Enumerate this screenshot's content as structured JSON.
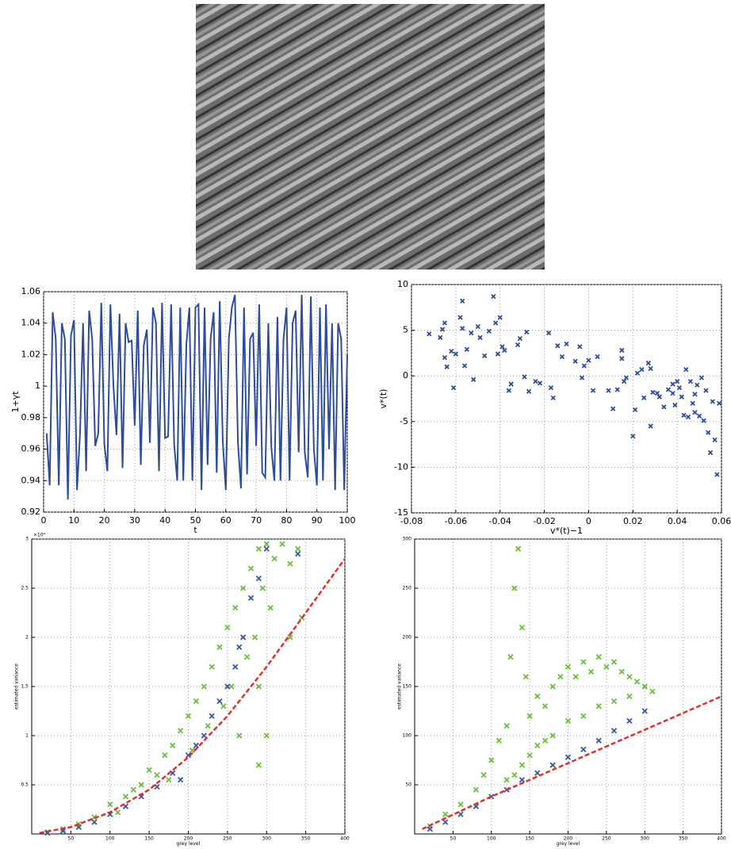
{
  "chart_data": [
    {
      "type": "line",
      "xlabel": "t",
      "ylabel": "1+γt",
      "xlim": [
        0,
        100
      ],
      "xticks": [
        0,
        10,
        20,
        30,
        40,
        50,
        60,
        70,
        80,
        90,
        100
      ],
      "ylim": [
        0.92,
        1.06
      ],
      "yticks": [
        0.92,
        0.94,
        0.96,
        0.98,
        1,
        1.02,
        1.04,
        1.06
      ],
      "grid": true,
      "font_size": 11,
      "series": [
        {
          "color": "#2e4c9c",
          "marker": "line",
          "x": [
            1,
            2,
            3,
            4,
            5,
            6,
            7,
            8,
            9,
            10,
            11,
            12,
            13,
            14,
            15,
            16,
            17,
            18,
            19,
            20,
            21,
            22,
            23,
            24,
            25,
            26,
            27,
            28,
            29,
            30,
            31,
            32,
            33,
            34,
            35,
            36,
            37,
            38,
            39,
            40,
            41,
            42,
            43,
            44,
            45,
            46,
            47,
            48,
            49,
            50,
            51,
            52,
            53,
            54,
            55,
            56,
            57,
            58,
            59,
            60,
            61,
            62,
            63,
            64,
            65,
            66,
            67,
            68,
            69,
            70,
            71,
            72,
            73,
            74,
            75,
            76,
            77,
            78,
            79,
            80,
            81,
            82,
            83,
            84,
            85,
            86,
            87,
            88,
            89,
            90,
            91,
            92,
            93,
            94,
            95,
            96,
            97,
            98,
            99,
            100
          ],
          "values": [
            0.97,
            0.937,
            1.047,
            1.03,
            0.937,
            1.04,
            1.03,
            0.928,
            1.032,
            1.042,
            0.934,
            0.97,
            1.04,
            0.946,
            1.048,
            1.03,
            0.962,
            0.97,
            1.053,
            0.963,
            0.946,
            1.052,
            1.0,
            0.969,
            1.046,
            0.948,
            1.04,
            1.028,
            1.029,
            0.975,
            1.048,
            0.95,
            1.026,
            1.036,
            0.964,
            1.05,
            1.04,
            0.946,
            1.053,
            0.967,
            0.968,
            1.052,
            0.963,
            0.94,
            1.05,
            0.94,
            1.026,
            1.05,
            0.94,
            1.05,
            1.052,
            0.934,
            1.05,
            0.95,
            1.03,
            1.047,
            0.945,
            1.054,
            0.965,
            0.934,
            1.03,
            1.05,
            1.058,
            0.964,
            0.935,
            1.05,
            0.944,
            1.03,
            1.034,
            0.962,
            1.052,
            0.945,
            0.942,
            1.04,
            0.961,
            0.94,
            1.044,
            0.94,
            1.03,
            1.05,
            0.94,
            1.04,
            1.048,
            0.958,
            1.058,
            0.958,
            0.942,
            1.057,
            0.96,
            0.937,
            1.05,
            0.94,
            1.052,
            0.96,
            1.04,
            0.934,
            1.04,
            1.03,
            0.934,
            1.02
          ]
        }
      ]
    },
    {
      "type": "scatter",
      "xlabel": "v*(t)−1",
      "ylabel": "v*(t)",
      "xlim": [
        -0.08,
        0.06
      ],
      "xticks": [
        -0.08,
        -0.06,
        -0.04,
        -0.02,
        0,
        0.02,
        0.04,
        0.06
      ],
      "ylim": [
        -15,
        10
      ],
      "yticks": [
        -15,
        -10,
        -5,
        0,
        5,
        10
      ],
      "grid": true,
      "font_size": 11,
      "series": [
        {
          "color": "#2e4c9c",
          "marker": "x",
          "x": [
            -0.072,
            -0.067,
            -0.066,
            -0.065,
            -0.065,
            -0.064,
            -0.062,
            -0.061,
            -0.06,
            -0.058,
            -0.057,
            -0.057,
            -0.056,
            -0.055,
            -0.053,
            -0.052,
            -0.05,
            -0.049,
            -0.047,
            -0.045,
            -0.043,
            -0.042,
            -0.041,
            -0.04,
            -0.039,
            -0.038,
            -0.036,
            -0.035,
            -0.032,
            -0.031,
            -0.029,
            -0.028,
            -0.027,
            -0.024,
            -0.022,
            -0.018,
            -0.017,
            -0.016,
            -0.014,
            -0.012,
            -0.01,
            -0.006,
            -0.004,
            -0.003,
            -0.002,
            0,
            0.002,
            0.004,
            0.009,
            0.011,
            0.013,
            0.015,
            0.015,
            0.016,
            0.017,
            0.02,
            0.021,
            0.022,
            0.024,
            0.025,
            0.027,
            0.028,
            0.028,
            0.029,
            0.031,
            0.032,
            0.034,
            0.036,
            0.038,
            0.038,
            0.039,
            0.04,
            0.041,
            0.042,
            0.043,
            0.044,
            0.045,
            0.046,
            0.047,
            0.048,
            0.048,
            0.049,
            0.05,
            0.051,
            0.052,
            0.053,
            0.054,
            0.055,
            0.056,
            0.057,
            0.058,
            0.059
          ],
          "values": [
            4.6,
            4.2,
            5.1,
            5.8,
            2.0,
            1.0,
            2.7,
            -1.3,
            2.4,
            6.4,
            8.2,
            5.2,
            1.1,
            2.9,
            4.7,
            -0.4,
            5.4,
            4.2,
            2.2,
            4.9,
            8.7,
            5.8,
            2.4,
            6.4,
            3.2,
            2.8,
            -1.6,
            -0.9,
            3.4,
            4.1,
            -0.1,
            4.8,
            -1.7,
            -0.6,
            -0.8,
            4.7,
            -1.3,
            -2.4,
            3.3,
            2.1,
            3.5,
            1.6,
            3.2,
            -0.2,
            1.1,
            1.7,
            -1.6,
            2.1,
            -1.6,
            -3.6,
            -1.5,
            2.8,
            1.9,
            -0.6,
            -0.2,
            -6.6,
            -3.7,
            0.3,
            0.7,
            -2.4,
            1.4,
            -5.5,
            0.8,
            -1.8,
            -1.9,
            -2.3,
            -3.4,
            -1.5,
            -0.9,
            -1.9,
            -3.2,
            -0.6,
            -1.3,
            -2.3,
            -4.3,
            0.7,
            -4.5,
            -0.6,
            -3.0,
            -2.0,
            -4.0,
            -1.0,
            -4.4,
            -0.2,
            -4.9,
            -1.6,
            -6.2,
            -8.4,
            -2.8,
            -7.0,
            -10.8,
            -3.0
          ]
        }
      ]
    },
    {
      "type": "scatter",
      "xlabel": "grey level",
      "ylabel": "estimated variance",
      "y_multiplier": "×10⁴",
      "xlim": [
        0,
        400
      ],
      "xticks": [
        50,
        100,
        150,
        200,
        250,
        300,
        350,
        400
      ],
      "ylim": [
        0,
        3
      ],
      "yticks": [
        0.5,
        1,
        1.5,
        2,
        2.5,
        3
      ],
      "grid": true,
      "font_size": 6,
      "series": [
        {
          "color": "#6abf3b",
          "marker": "x",
          "x": [
            20,
            40,
            60,
            80,
            100,
            110,
            120,
            130,
            140,
            150,
            160,
            170,
            175,
            180,
            190,
            200,
            205,
            210,
            220,
            225,
            230,
            240,
            245,
            250,
            255,
            260,
            265,
            270,
            275,
            280,
            285,
            290,
            295,
            300,
            305,
            310,
            320,
            330,
            340,
            345,
            290,
            290,
            300,
            330
          ],
          "values": [
            0.02,
            0.05,
            0.1,
            0.17,
            0.3,
            0.22,
            0.38,
            0.45,
            0.5,
            0.65,
            0.6,
            0.8,
            0.55,
            0.9,
            1.05,
            1.2,
            0.85,
            1.35,
            1.5,
            1.1,
            1.7,
            1.9,
            1.3,
            2.1,
            1.5,
            2.3,
            1.0,
            2.5,
            1.8,
            2.7,
            2.0,
            2.9,
            2.5,
            2.95,
            2.3,
            2.8,
            2.95,
            2.75,
            2.9,
            2.2,
            1.5,
            0.7,
            1.0,
            2.0
          ]
        },
        {
          "color": "#3a55a4",
          "marker": "x",
          "x": [
            20,
            40,
            60,
            80,
            100,
            120,
            140,
            160,
            180,
            190,
            200,
            210,
            220,
            230,
            240,
            250,
            260,
            265,
            270,
            280,
            290,
            300,
            340
          ],
          "values": [
            0.01,
            0.03,
            0.07,
            0.12,
            0.2,
            0.28,
            0.38,
            0.48,
            0.62,
            0.55,
            0.8,
            0.9,
            1.0,
            1.2,
            1.35,
            1.5,
            1.7,
            1.9,
            2.0,
            2.4,
            2.6,
            2.9,
            2.85
          ]
        },
        {
          "color": "#e0302a",
          "marker": "dashed",
          "x": [
            10,
            50,
            100,
            150,
            200,
            250,
            300,
            350,
            400
          ],
          "values": [
            0.01,
            0.07,
            0.22,
            0.45,
            0.78,
            1.2,
            1.7,
            2.25,
            2.8
          ]
        }
      ]
    },
    {
      "type": "scatter",
      "xlabel": "grey level",
      "ylabel": "estimated variance",
      "xlim": [
        0,
        400
      ],
      "xticks": [
        50,
        100,
        150,
        200,
        250,
        300,
        350,
        400
      ],
      "ylim": [
        0,
        300
      ],
      "yticks": [
        50,
        100,
        150,
        200,
        250,
        300
      ],
      "grid": true,
      "font_size": 6,
      "series": [
        {
          "color": "#6abf3b",
          "marker": "x",
          "x": [
            20,
            40,
            60,
            80,
            90,
            100,
            110,
            120,
            125,
            130,
            135,
            140,
            145,
            150,
            160,
            170,
            180,
            190,
            200,
            210,
            220,
            230,
            240,
            250,
            260,
            270,
            280,
            290,
            300,
            310,
            120,
            130,
            140,
            150,
            160,
            170,
            180,
            200,
            220,
            240,
            260,
            280,
            300
          ],
          "values": [
            8,
            20,
            30,
            45,
            60,
            75,
            95,
            110,
            180,
            250,
            290,
            210,
            160,
            120,
            140,
            130,
            150,
            160,
            170,
            160,
            175,
            165,
            180,
            170,
            175,
            165,
            160,
            155,
            150,
            145,
            55,
            60,
            70,
            80,
            90,
            95,
            100,
            115,
            120,
            130,
            135,
            140,
            150
          ]
        },
        {
          "color": "#3a55a4",
          "marker": "x",
          "x": [
            20,
            40,
            60,
            80,
            100,
            120,
            140,
            160,
            180,
            200,
            220,
            240,
            260,
            280,
            300
          ],
          "values": [
            5,
            12,
            20,
            28,
            38,
            45,
            55,
            62,
            70,
            78,
            86,
            95,
            105,
            115,
            125
          ]
        },
        {
          "color": "#e0302a",
          "marker": "dashed",
          "x": [
            10,
            100,
            200,
            300,
            400
          ],
          "values": [
            5,
            38,
            72,
            106,
            140
          ]
        }
      ]
    }
  ]
}
